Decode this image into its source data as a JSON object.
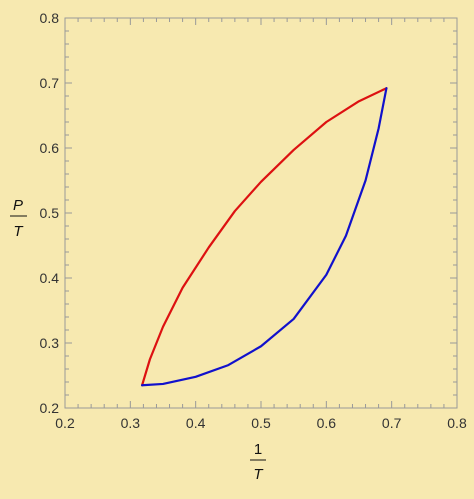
{
  "colors": {
    "background": "#f7e9b0",
    "frame": "#999999",
    "red_curve": "#dd1111",
    "blue_curve": "#1111cc"
  },
  "chart_data": {
    "type": "line",
    "title": "",
    "xlabel": {
      "numerator": "1",
      "denominator": "T"
    },
    "ylabel": {
      "numerator": "P",
      "denominator": "T"
    },
    "xlim": [
      0.2,
      0.8
    ],
    "ylim": [
      0.2,
      0.8
    ],
    "xticks": [
      "0.2",
      "0.3",
      "0.4",
      "0.5",
      "0.6",
      "0.7",
      "0.8"
    ],
    "yticks": [
      "0.2",
      "0.3",
      "0.4",
      "0.5",
      "0.6",
      "0.7",
      "0.8"
    ],
    "grid": false,
    "series": [
      {
        "color": "red",
        "x": [
          0.318,
          0.33,
          0.35,
          0.38,
          0.42,
          0.46,
          0.5,
          0.55,
          0.6,
          0.65,
          0.692
        ],
        "y": [
          0.235,
          0.275,
          0.325,
          0.385,
          0.447,
          0.503,
          0.548,
          0.597,
          0.64,
          0.672,
          0.692
        ]
      },
      {
        "color": "blue",
        "x": [
          0.318,
          0.35,
          0.4,
          0.45,
          0.5,
          0.55,
          0.6,
          0.63,
          0.66,
          0.68,
          0.692
        ],
        "y": [
          0.235,
          0.237,
          0.248,
          0.266,
          0.295,
          0.337,
          0.405,
          0.465,
          0.55,
          0.63,
          0.692
        ]
      }
    ]
  }
}
